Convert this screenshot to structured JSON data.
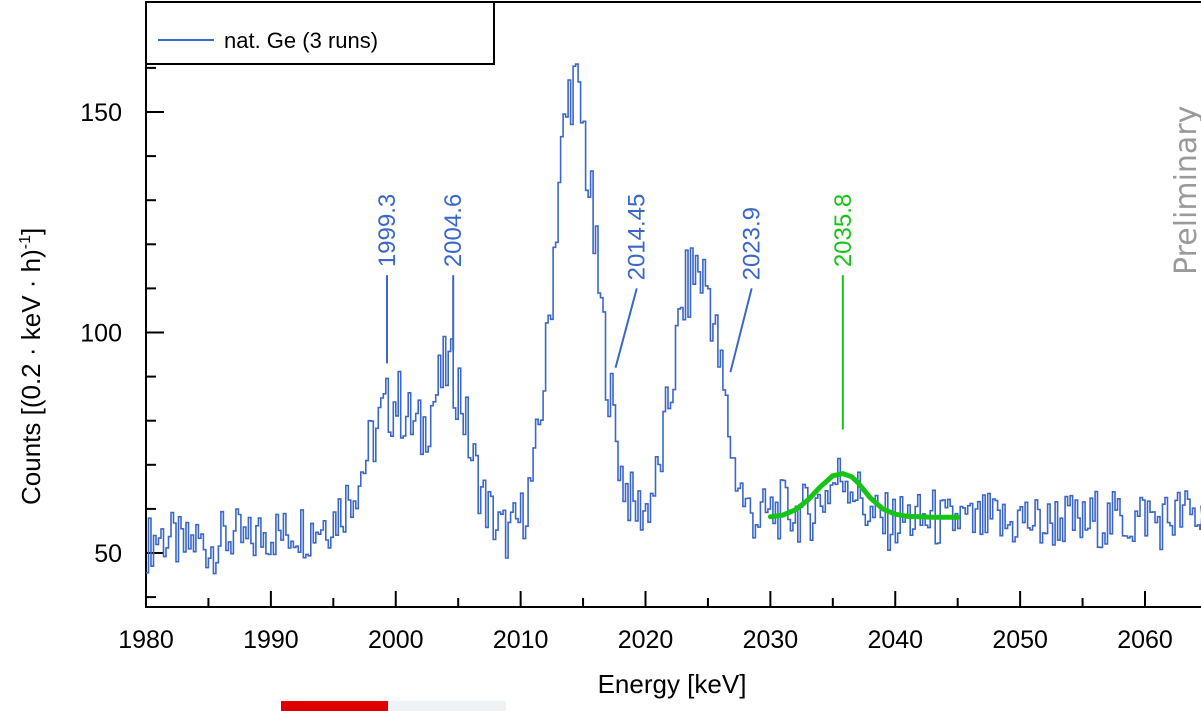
{
  "chart_data": {
    "type": "line",
    "xlabel": "Energy [keV]",
    "ylabel": "Counts [(0.2 · keV · h)",
    "ylabel_sup": "-1",
    "ylabel_tail": "]",
    "xlim": [
      1980,
      2065
    ],
    "ylim": [
      38,
      166
    ],
    "xticks": [
      1980,
      1990,
      2000,
      2010,
      2020,
      2030,
      2040,
      2050,
      2060
    ],
    "yticks": [
      50,
      100,
      150
    ],
    "legend": {
      "position": "top-left",
      "entries": [
        "nat. Ge (3 runs)"
      ]
    },
    "watermark": "Preliminary",
    "colors": {
      "histogram": "#3a67c9",
      "fit": "#16c416",
      "label_blue": "#3a67c9",
      "label_green": "#16c416"
    },
    "series": [
      {
        "name": "nat. Ge (3 runs)",
        "style": "step",
        "x": [
          1980,
          1981,
          1982,
          1983,
          1984,
          1985,
          1986,
          1987,
          1988,
          1989,
          1990,
          1991,
          1992,
          1993,
          1994,
          1995,
          1996,
          1997,
          1998,
          1999,
          2000,
          2001,
          2002,
          2003,
          2004,
          2005,
          2006,
          2007,
          2008,
          2009,
          2010,
          2011,
          2012,
          2013,
          2014,
          2015,
          2016,
          2017,
          2018,
          2019,
          2020,
          2021,
          2022,
          2023,
          2024,
          2025,
          2026,
          2027,
          2028,
          2029,
          2030,
          2031,
          2032,
          2033,
          2034,
          2035,
          2036,
          2037,
          2038,
          2039,
          2040,
          2041,
          2042,
          2043,
          2044,
          2045,
          2046,
          2047,
          2048,
          2049,
          2050,
          2051,
          2052,
          2053,
          2054,
          2055,
          2056,
          2057,
          2058,
          2059,
          2060,
          2061,
          2062,
          2063,
          2064,
          2065
        ],
        "values": [
          52,
          54,
          53,
          51,
          53,
          51,
          53,
          54,
          52,
          54,
          55,
          54,
          56,
          55,
          57,
          58,
          62,
          67,
          75,
          82,
          85,
          80,
          77,
          85,
          92,
          88,
          72,
          62,
          56,
          54,
          58,
          68,
          95,
          135,
          158,
          145,
          115,
          88,
          68,
          60,
          60,
          68,
          88,
          108,
          115,
          110,
          90,
          70,
          60,
          58,
          59,
          60,
          59,
          59,
          62,
          66,
          68,
          63,
          58,
          57,
          57,
          58,
          57,
          58,
          56,
          58,
          56,
          57,
          57,
          56,
          58,
          57,
          56,
          58,
          57,
          56,
          58,
          57,
          58,
          57,
          59,
          57,
          58,
          59,
          58,
          57
        ]
      },
      {
        "name": "",
        "style": "fit",
        "x": [
          2030,
          2031,
          2032,
          2033,
          2034,
          2035,
          2035.8,
          2036.5,
          2037,
          2038,
          2039,
          2040,
          2041,
          2042,
          2043,
          2044,
          2045
        ],
        "values": [
          58.2,
          58.6,
          59.8,
          62,
          65,
          67.5,
          68,
          67.3,
          66,
          62.5,
          60,
          58.8,
          58.3,
          58.2,
          58.1,
          58.1,
          58.1
        ]
      }
    ],
    "annotations": [
      {
        "text": "1999.3",
        "x": 1999.3,
        "y_line": [
          93,
          113
        ],
        "color": "blue"
      },
      {
        "text": "2004.6",
        "x": 2004.6,
        "y_line": [
          96,
          113
        ],
        "color": "blue"
      },
      {
        "text": "2014.45",
        "x": 2017.6,
        "x_top": 2019.3,
        "y_line": [
          92,
          110
        ],
        "color": "blue"
      },
      {
        "text": "2023.9",
        "x": 2026.8,
        "x_top": 2028.5,
        "y_line": [
          91,
          110
        ],
        "color": "blue"
      },
      {
        "text": "2035.8",
        "x": 2035.8,
        "y_line": [
          78,
          113
        ],
        "color": "green"
      }
    ]
  }
}
